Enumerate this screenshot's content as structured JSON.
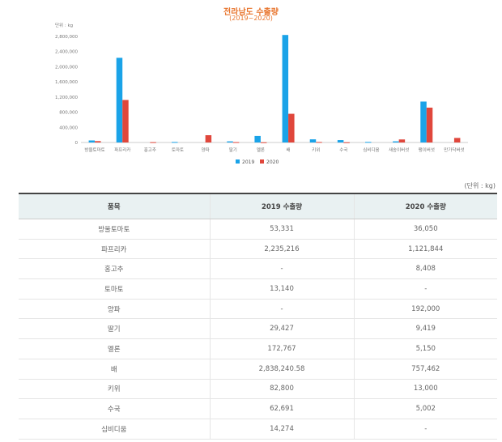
{
  "chart_data": {
    "type": "bar",
    "title": "전라남도 수출량",
    "subtitle": "(2019~2020)",
    "ylabel": "단위 : kg",
    "ylim": [
      0,
      2800000
    ],
    "yticks": [
      "0",
      "400,000",
      "800,000",
      "1,200,000",
      "1,600,000",
      "2,000,000",
      "2,400,000",
      "2,800,000"
    ],
    "categories": [
      "방울토마토",
      "파프리카",
      "홍고추",
      "토마토",
      "양파",
      "딸기",
      "멜론",
      "배",
      "키위",
      "수국",
      "심비디움",
      "새송이버섯",
      "팽이버섯",
      "만가닥버섯"
    ],
    "series": [
      {
        "name": "2019",
        "color": "#1aa3e8",
        "values": [
          53331,
          2235216,
          0,
          13140,
          0,
          29427,
          172767,
          2838240.58,
          82800,
          62691,
          14274,
          30000,
          1080000,
          0
        ]
      },
      {
        "name": "2020",
        "color": "#e0473c",
        "values": [
          36050,
          1121844,
          8408,
          0,
          192000,
          9419,
          5150,
          757462,
          13000,
          5002,
          0,
          80000,
          920000,
          120000
        ]
      }
    ],
    "legend_position": "bottom",
    "grid": false
  },
  "table": {
    "unit_note": "(단위 : kg)",
    "headers": [
      "품목",
      "2019 수출량",
      "2020 수출량"
    ],
    "rows": [
      [
        "방울토마토",
        "53,331",
        "36,050"
      ],
      [
        "파프리카",
        "2,235,216",
        "1,121,844"
      ],
      [
        "홍고추",
        "-",
        "8,408"
      ],
      [
        "토마토",
        "13,140",
        "-"
      ],
      [
        "양파",
        "-",
        "192,000"
      ],
      [
        "딸기",
        "29,427",
        "9,419"
      ],
      [
        "멜론",
        "172,767",
        "5,150"
      ],
      [
        "배",
        "2,838,240.58",
        "757,462"
      ],
      [
        "키위",
        "82,800",
        "13,000"
      ],
      [
        "수국",
        "62,691",
        "5,002"
      ],
      [
        "심비디움",
        "14,274",
        "-"
      ]
    ]
  }
}
